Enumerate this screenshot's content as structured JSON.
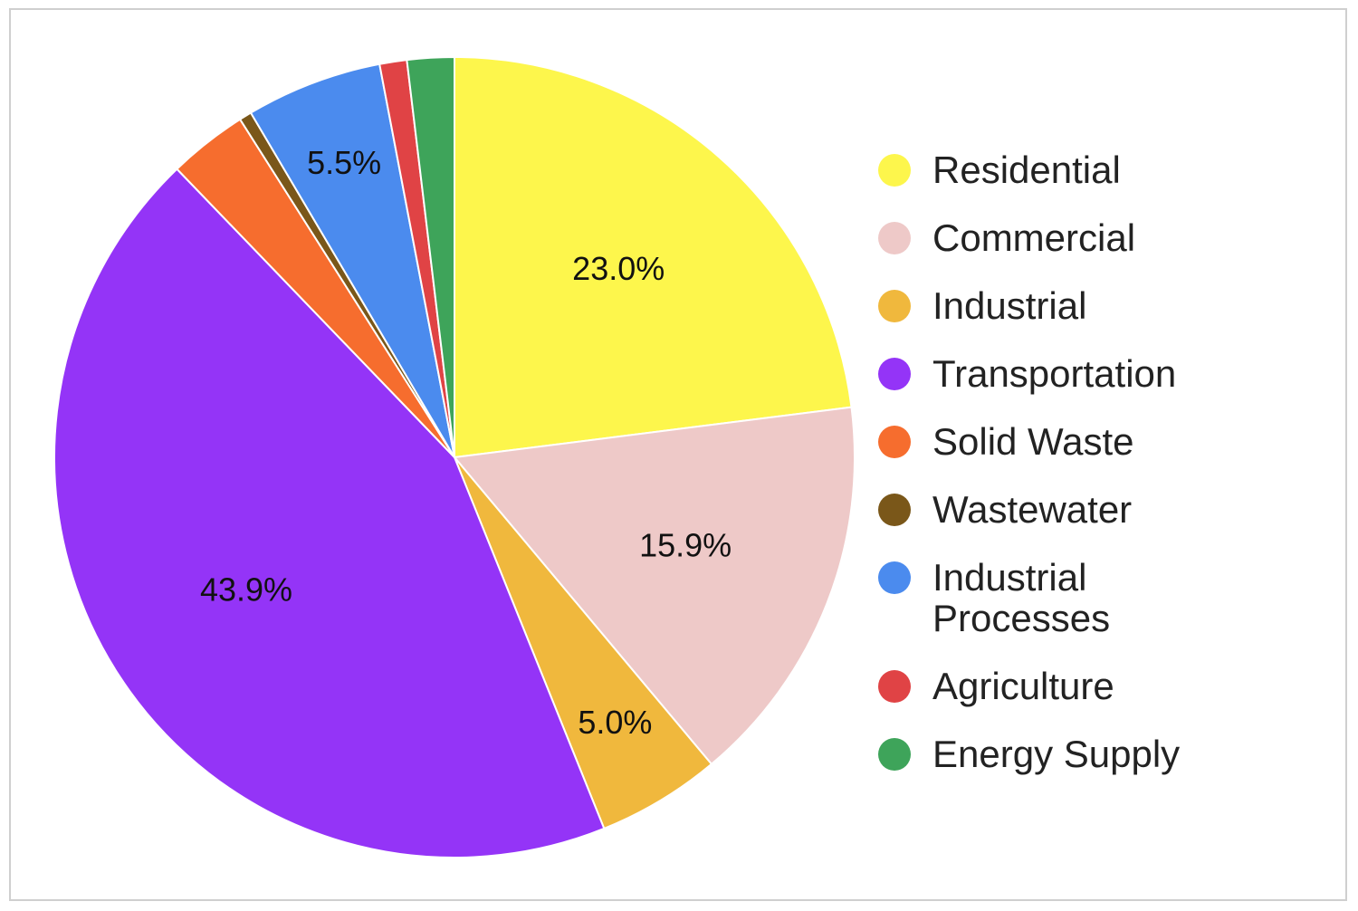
{
  "chart_data": {
    "type": "pie",
    "categories": [
      "Residential",
      "Commercial",
      "Industrial",
      "Transportation",
      "Solid Waste",
      "Wastewater",
      "Industrial Processes",
      "Agriculture",
      "Energy Supply"
    ],
    "values": [
      23.0,
      15.9,
      5.0,
      43.9,
      3.2,
      0.5,
      5.5,
      1.1,
      1.9
    ],
    "colors": [
      "#fdf64c",
      "#eec9c8",
      "#f0b83d",
      "#9434f7",
      "#f66d2e",
      "#7a5719",
      "#4b8bee",
      "#e04345",
      "#3ea45a"
    ],
    "data_labels": [
      "23.0%",
      "15.9%",
      "5.0%",
      "43.9%",
      "",
      "",
      "5.5%",
      "",
      ""
    ],
    "start": "top",
    "direction": "clockwise",
    "legend_position": "right",
    "title": ""
  }
}
